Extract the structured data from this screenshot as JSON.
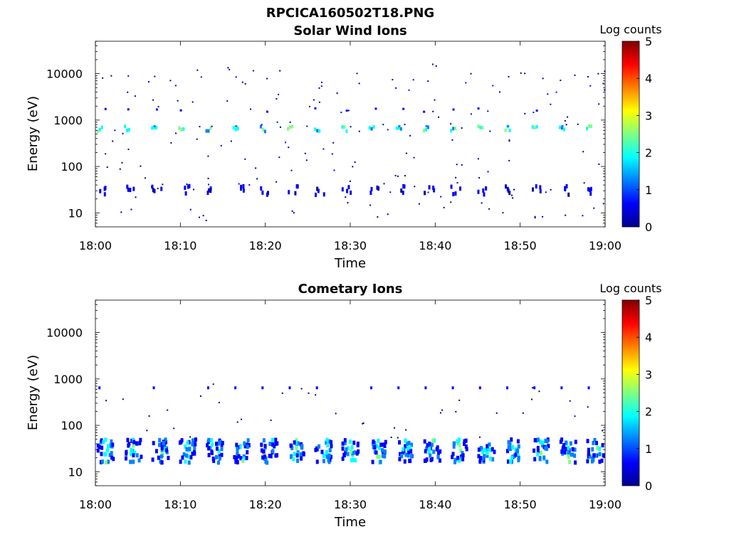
{
  "figure": {
    "title": "RPCICA160502T18.PNG"
  },
  "colormap": [
    "#00008f",
    "#0000ff",
    "#0080ff",
    "#00ffff",
    "#80ff80",
    "#ffff00",
    "#ff8000",
    "#ff0000",
    "#800000"
  ],
  "chart_data": [
    {
      "type": "heatmap",
      "title": "Solar Wind Ions",
      "xlabel": "Time",
      "ylabel": "Energy (eV)",
      "xscale": "time",
      "xlim": [
        "18:00",
        "19:00"
      ],
      "xticks": [
        "18:00",
        "18:10",
        "18:20",
        "18:30",
        "18:40",
        "18:50",
        "19:00"
      ],
      "yscale": "log",
      "ylim": [
        5,
        50000
      ],
      "yticks": [
        10,
        100,
        1000,
        10000
      ],
      "ytick_labels": [
        "10",
        "100",
        "1000",
        "10000"
      ],
      "colorbar": {
        "label": "Log counts",
        "min": 0,
        "max": 5,
        "ticks": [
          "0",
          "1",
          "2",
          "3",
          "4",
          "5"
        ]
      },
      "sweep_period_min": 3.2,
      "bands": [
        {
          "energy_eV": 600,
          "level": 2.0
        },
        {
          "energy_eV": 30,
          "level": 0.6
        },
        {
          "energy_eV": 1500,
          "level": 0.8
        }
      ],
      "notes": "Per-sweep enhancements near 600 eV (log counts ~2) and 25-35 eV (log counts ~0.5-1) with scattered single counts 5 eV - 20 keV"
    },
    {
      "type": "heatmap",
      "title": "Cometary Ions",
      "xlabel": "Time",
      "ylabel": "Energy (eV)",
      "xscale": "time",
      "xlim": [
        "18:00",
        "19:00"
      ],
      "xticks": [
        "18:00",
        "18:10",
        "18:20",
        "18:30",
        "18:40",
        "18:50",
        "19:00"
      ],
      "yscale": "log",
      "ylim": [
        5,
        50000
      ],
      "yticks": [
        10,
        100,
        1000,
        10000
      ],
      "ytick_labels": [
        "10",
        "100",
        "1000",
        "10000"
      ],
      "colorbar": {
        "label": "Log counts",
        "min": 0,
        "max": 5,
        "ticks": [
          "0",
          "1",
          "2",
          "3",
          "4",
          "5"
        ]
      },
      "sweep_period_min": 3.2,
      "bands": [
        {
          "energy_eV": 25,
          "level": 2.0
        },
        {
          "energy_eV": 600,
          "level": 0.5
        }
      ],
      "notes": "Per-sweep blobs at 15-40 eV reaching log counts ~2.5 with weak 600 eV line"
    }
  ]
}
